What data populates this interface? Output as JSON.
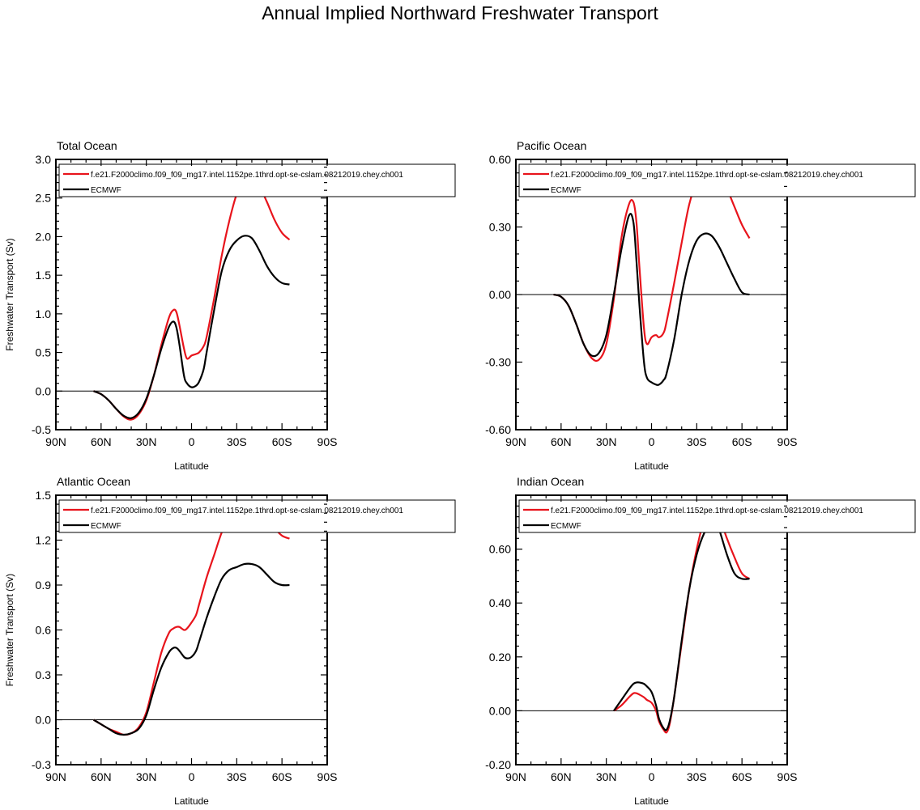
{
  "title": "Annual Implied Northward Freshwater Transport",
  "colors": {
    "model": "#e8141c",
    "obs": "#000000",
    "zero_line": "#000000"
  },
  "chart_data": [
    {
      "type": "line",
      "title": "Total Ocean",
      "xlabel": "Latitude",
      "ylabel": "Freshwater Transport (Sv)",
      "xlim": [
        -90,
        90
      ],
      "ylim": [
        -0.5,
        3.0
      ],
      "x_ticks": [
        -90,
        -60,
        -30,
        0,
        30,
        60,
        90
      ],
      "x_tick_labels": [
        "90N",
        "60N",
        "30N",
        "0",
        "30S",
        "60S",
        "90S"
      ],
      "y_ticks": [
        -0.5,
        0.0,
        0.5,
        1.0,
        1.5,
        2.0,
        2.5,
        3.0
      ],
      "y_tick_labels": [
        "-0.5",
        "0.0",
        "0.5",
        "1.0",
        "1.5",
        "2.0",
        "2.5",
        "3.0"
      ],
      "legend_position": "top",
      "series": [
        {
          "name": "f.e21.F2000climo.f09_f09_mg17.intel.1152pe.1thrd.opt-se-cslam.08212019.chey.ch001",
          "color": "#e8141c",
          "x": [
            -65,
            -60,
            -55,
            -50,
            -45,
            -40,
            -35,
            -30,
            -25,
            -20,
            -15,
            -12,
            -10,
            -8,
            -5,
            -3,
            0,
            3,
            5,
            8,
            10,
            15,
            20,
            25,
            30,
            35,
            40,
            45,
            50,
            55,
            60,
            65
          ],
          "y": [
            0.0,
            -0.04,
            -0.12,
            -0.23,
            -0.33,
            -0.37,
            -0.3,
            -0.12,
            0.2,
            0.6,
            0.95,
            1.05,
            1.02,
            0.85,
            0.55,
            0.42,
            0.46,
            0.48,
            0.5,
            0.58,
            0.7,
            1.2,
            1.75,
            2.2,
            2.55,
            2.7,
            2.75,
            2.65,
            2.45,
            2.22,
            2.05,
            1.96
          ]
        },
        {
          "name": "ECMWF",
          "color": "#000000",
          "x": [
            -65,
            -60,
            -55,
            -50,
            -45,
            -40,
            -35,
            -30,
            -25,
            -20,
            -15,
            -12,
            -10,
            -8,
            -5,
            -3,
            0,
            3,
            5,
            8,
            10,
            15,
            20,
            25,
            30,
            35,
            40,
            45,
            50,
            55,
            60,
            65
          ],
          "y": [
            0.0,
            -0.04,
            -0.12,
            -0.23,
            -0.32,
            -0.35,
            -0.28,
            -0.1,
            0.2,
            0.55,
            0.83,
            0.9,
            0.82,
            0.6,
            0.2,
            0.1,
            0.05,
            0.07,
            0.12,
            0.28,
            0.5,
            1.05,
            1.55,
            1.82,
            1.95,
            2.01,
            1.98,
            1.82,
            1.62,
            1.48,
            1.4,
            1.38
          ]
        }
      ]
    },
    {
      "type": "line",
      "title": "Pacific Ocean",
      "xlabel": "Latitude",
      "ylabel": "",
      "xlim": [
        -90,
        90
      ],
      "ylim": [
        -0.6,
        0.6
      ],
      "x_ticks": [
        -90,
        -60,
        -30,
        0,
        30,
        60,
        90
      ],
      "x_tick_labels": [
        "90N",
        "60N",
        "30N",
        "0",
        "30S",
        "60S",
        "90S"
      ],
      "y_ticks": [
        -0.6,
        -0.3,
        0.0,
        0.3,
        0.6
      ],
      "y_tick_labels": [
        "-0.60",
        "-0.30",
        "0.00",
        "0.30",
        "0.60"
      ],
      "legend_position": "top",
      "series": [
        {
          "name": "f.e21.F2000climo.f09_f09_mg17.intel.1152pe.1thrd.opt-se-cslam.08212019.chey.ch001",
          "color": "#e8141c",
          "x": [
            -65,
            -60,
            -55,
            -50,
            -45,
            -40,
            -35,
            -30,
            -25,
            -20,
            -15,
            -12,
            -10,
            -8,
            -5,
            -3,
            0,
            3,
            5,
            8,
            10,
            15,
            20,
            25,
            30,
            35,
            40,
            45,
            50,
            55,
            60,
            65
          ],
          "y": [
            0.0,
            -0.01,
            -0.05,
            -0.13,
            -0.22,
            -0.28,
            -0.29,
            -0.22,
            -0.02,
            0.25,
            0.4,
            0.41,
            0.32,
            0.12,
            -0.15,
            -0.22,
            -0.19,
            -0.18,
            -0.19,
            -0.17,
            -0.12,
            0.05,
            0.23,
            0.4,
            0.5,
            0.55,
            0.56,
            0.53,
            0.47,
            0.39,
            0.31,
            0.25
          ]
        },
        {
          "name": "ECMWF",
          "color": "#000000",
          "x": [
            -65,
            -60,
            -55,
            -50,
            -45,
            -40,
            -35,
            -30,
            -25,
            -20,
            -15,
            -12,
            -10,
            -8,
            -5,
            -3,
            0,
            3,
            5,
            8,
            10,
            15,
            20,
            25,
            30,
            35,
            40,
            45,
            50,
            55,
            60,
            65
          ],
          "y": [
            0.0,
            -0.01,
            -0.05,
            -0.13,
            -0.22,
            -0.27,
            -0.26,
            -0.18,
            0.0,
            0.2,
            0.35,
            0.32,
            0.15,
            -0.05,
            -0.3,
            -0.37,
            -0.39,
            -0.4,
            -0.4,
            -0.38,
            -0.35,
            -0.2,
            0.0,
            0.15,
            0.24,
            0.27,
            0.26,
            0.21,
            0.14,
            0.07,
            0.01,
            0.0
          ]
        }
      ]
    },
    {
      "type": "line",
      "title": "Atlantic Ocean",
      "xlabel": "Latitude",
      "ylabel": "Freshwater Transport (Sv)",
      "xlim": [
        -90,
        90
      ],
      "ylim": [
        -0.3,
        1.5
      ],
      "x_ticks": [
        -90,
        -60,
        -30,
        0,
        30,
        60,
        90
      ],
      "x_tick_labels": [
        "90N",
        "60N",
        "30N",
        "0",
        "30S",
        "60S",
        "90S"
      ],
      "y_ticks": [
        -0.3,
        0.0,
        0.3,
        0.6,
        0.9,
        1.2,
        1.5
      ],
      "y_tick_labels": [
        "-0.3",
        "0.0",
        "0.3",
        "0.6",
        "0.9",
        "1.2",
        "1.5"
      ],
      "legend_position": "top",
      "series": [
        {
          "name": "f.e21.F2000climo.f09_f09_mg17.intel.1152pe.1thrd.opt-se-cslam.08212019.chey.ch001",
          "color": "#e8141c",
          "x": [
            -65,
            -60,
            -55,
            -50,
            -45,
            -40,
            -35,
            -30,
            -25,
            -20,
            -15,
            -12,
            -10,
            -8,
            -5,
            -3,
            0,
            3,
            5,
            10,
            15,
            20,
            25,
            30,
            35,
            40,
            45,
            50,
            55,
            60,
            65
          ],
          "y": [
            0.0,
            -0.03,
            -0.06,
            -0.08,
            -0.1,
            -0.09,
            -0.05,
            0.05,
            0.25,
            0.45,
            0.58,
            0.61,
            0.62,
            0.62,
            0.6,
            0.61,
            0.65,
            0.7,
            0.77,
            0.95,
            1.1,
            1.25,
            1.35,
            1.4,
            1.42,
            1.42,
            1.39,
            1.34,
            1.28,
            1.23,
            1.21
          ]
        },
        {
          "name": "ECMWF",
          "color": "#000000",
          "x": [
            -65,
            -60,
            -55,
            -50,
            -45,
            -40,
            -35,
            -30,
            -25,
            -20,
            -15,
            -12,
            -10,
            -8,
            -5,
            -3,
            0,
            3,
            5,
            10,
            15,
            20,
            25,
            30,
            35,
            40,
            45,
            50,
            55,
            60,
            65
          ],
          "y": [
            0.0,
            -0.03,
            -0.06,
            -0.09,
            -0.1,
            -0.09,
            -0.06,
            0.03,
            0.2,
            0.35,
            0.45,
            0.48,
            0.48,
            0.46,
            0.42,
            0.41,
            0.42,
            0.46,
            0.52,
            0.68,
            0.82,
            0.94,
            1.0,
            1.02,
            1.04,
            1.04,
            1.02,
            0.97,
            0.92,
            0.9,
            0.9
          ]
        }
      ]
    },
    {
      "type": "line",
      "title": "Indian Ocean",
      "xlabel": "Latitude",
      "ylabel": "",
      "xlim": [
        -90,
        90
      ],
      "ylim": [
        -0.2,
        0.8
      ],
      "x_ticks": [
        -90,
        -60,
        -30,
        0,
        30,
        60,
        90
      ],
      "x_tick_labels": [
        "90N",
        "60N",
        "30N",
        "0",
        "30S",
        "60S",
        "90S"
      ],
      "y_ticks": [
        -0.2,
        0.0,
        0.2,
        0.4,
        0.6
      ],
      "y_tick_labels": [
        "-0.20",
        "0.00",
        "0.20",
        "0.40",
        "0.60"
      ],
      "legend_position": "top",
      "series": [
        {
          "name": "f.e21.F2000climo.f09_f09_mg17.intel.1152pe.1thrd.opt-se-cslam.08212019.chey.ch001",
          "color": "#e8141c",
          "x": [
            -25,
            -20,
            -15,
            -12,
            -10,
            -8,
            -5,
            -3,
            0,
            3,
            5,
            8,
            10,
            12,
            15,
            20,
            25,
            30,
            35,
            40,
            42,
            45,
            50,
            55,
            60,
            65
          ],
          "y": [
            0.0,
            0.02,
            0.05,
            0.065,
            0.065,
            0.06,
            0.05,
            0.04,
            0.03,
            0.0,
            -0.04,
            -0.07,
            -0.08,
            -0.05,
            0.05,
            0.25,
            0.45,
            0.6,
            0.71,
            0.76,
            0.76,
            0.72,
            0.64,
            0.57,
            0.51,
            0.49
          ]
        },
        {
          "name": "ECMWF",
          "color": "#000000",
          "x": [
            -25,
            -20,
            -15,
            -12,
            -10,
            -8,
            -5,
            -3,
            0,
            3,
            5,
            8,
            10,
            12,
            15,
            20,
            25,
            30,
            35,
            40,
            42,
            45,
            50,
            55,
            60,
            65
          ],
          "y": [
            0.0,
            0.04,
            0.08,
            0.1,
            0.105,
            0.105,
            0.1,
            0.09,
            0.07,
            0.02,
            -0.03,
            -0.065,
            -0.07,
            -0.04,
            0.05,
            0.26,
            0.45,
            0.58,
            0.66,
            0.7,
            0.7,
            0.67,
            0.58,
            0.51,
            0.49,
            0.49
          ]
        }
      ]
    }
  ]
}
